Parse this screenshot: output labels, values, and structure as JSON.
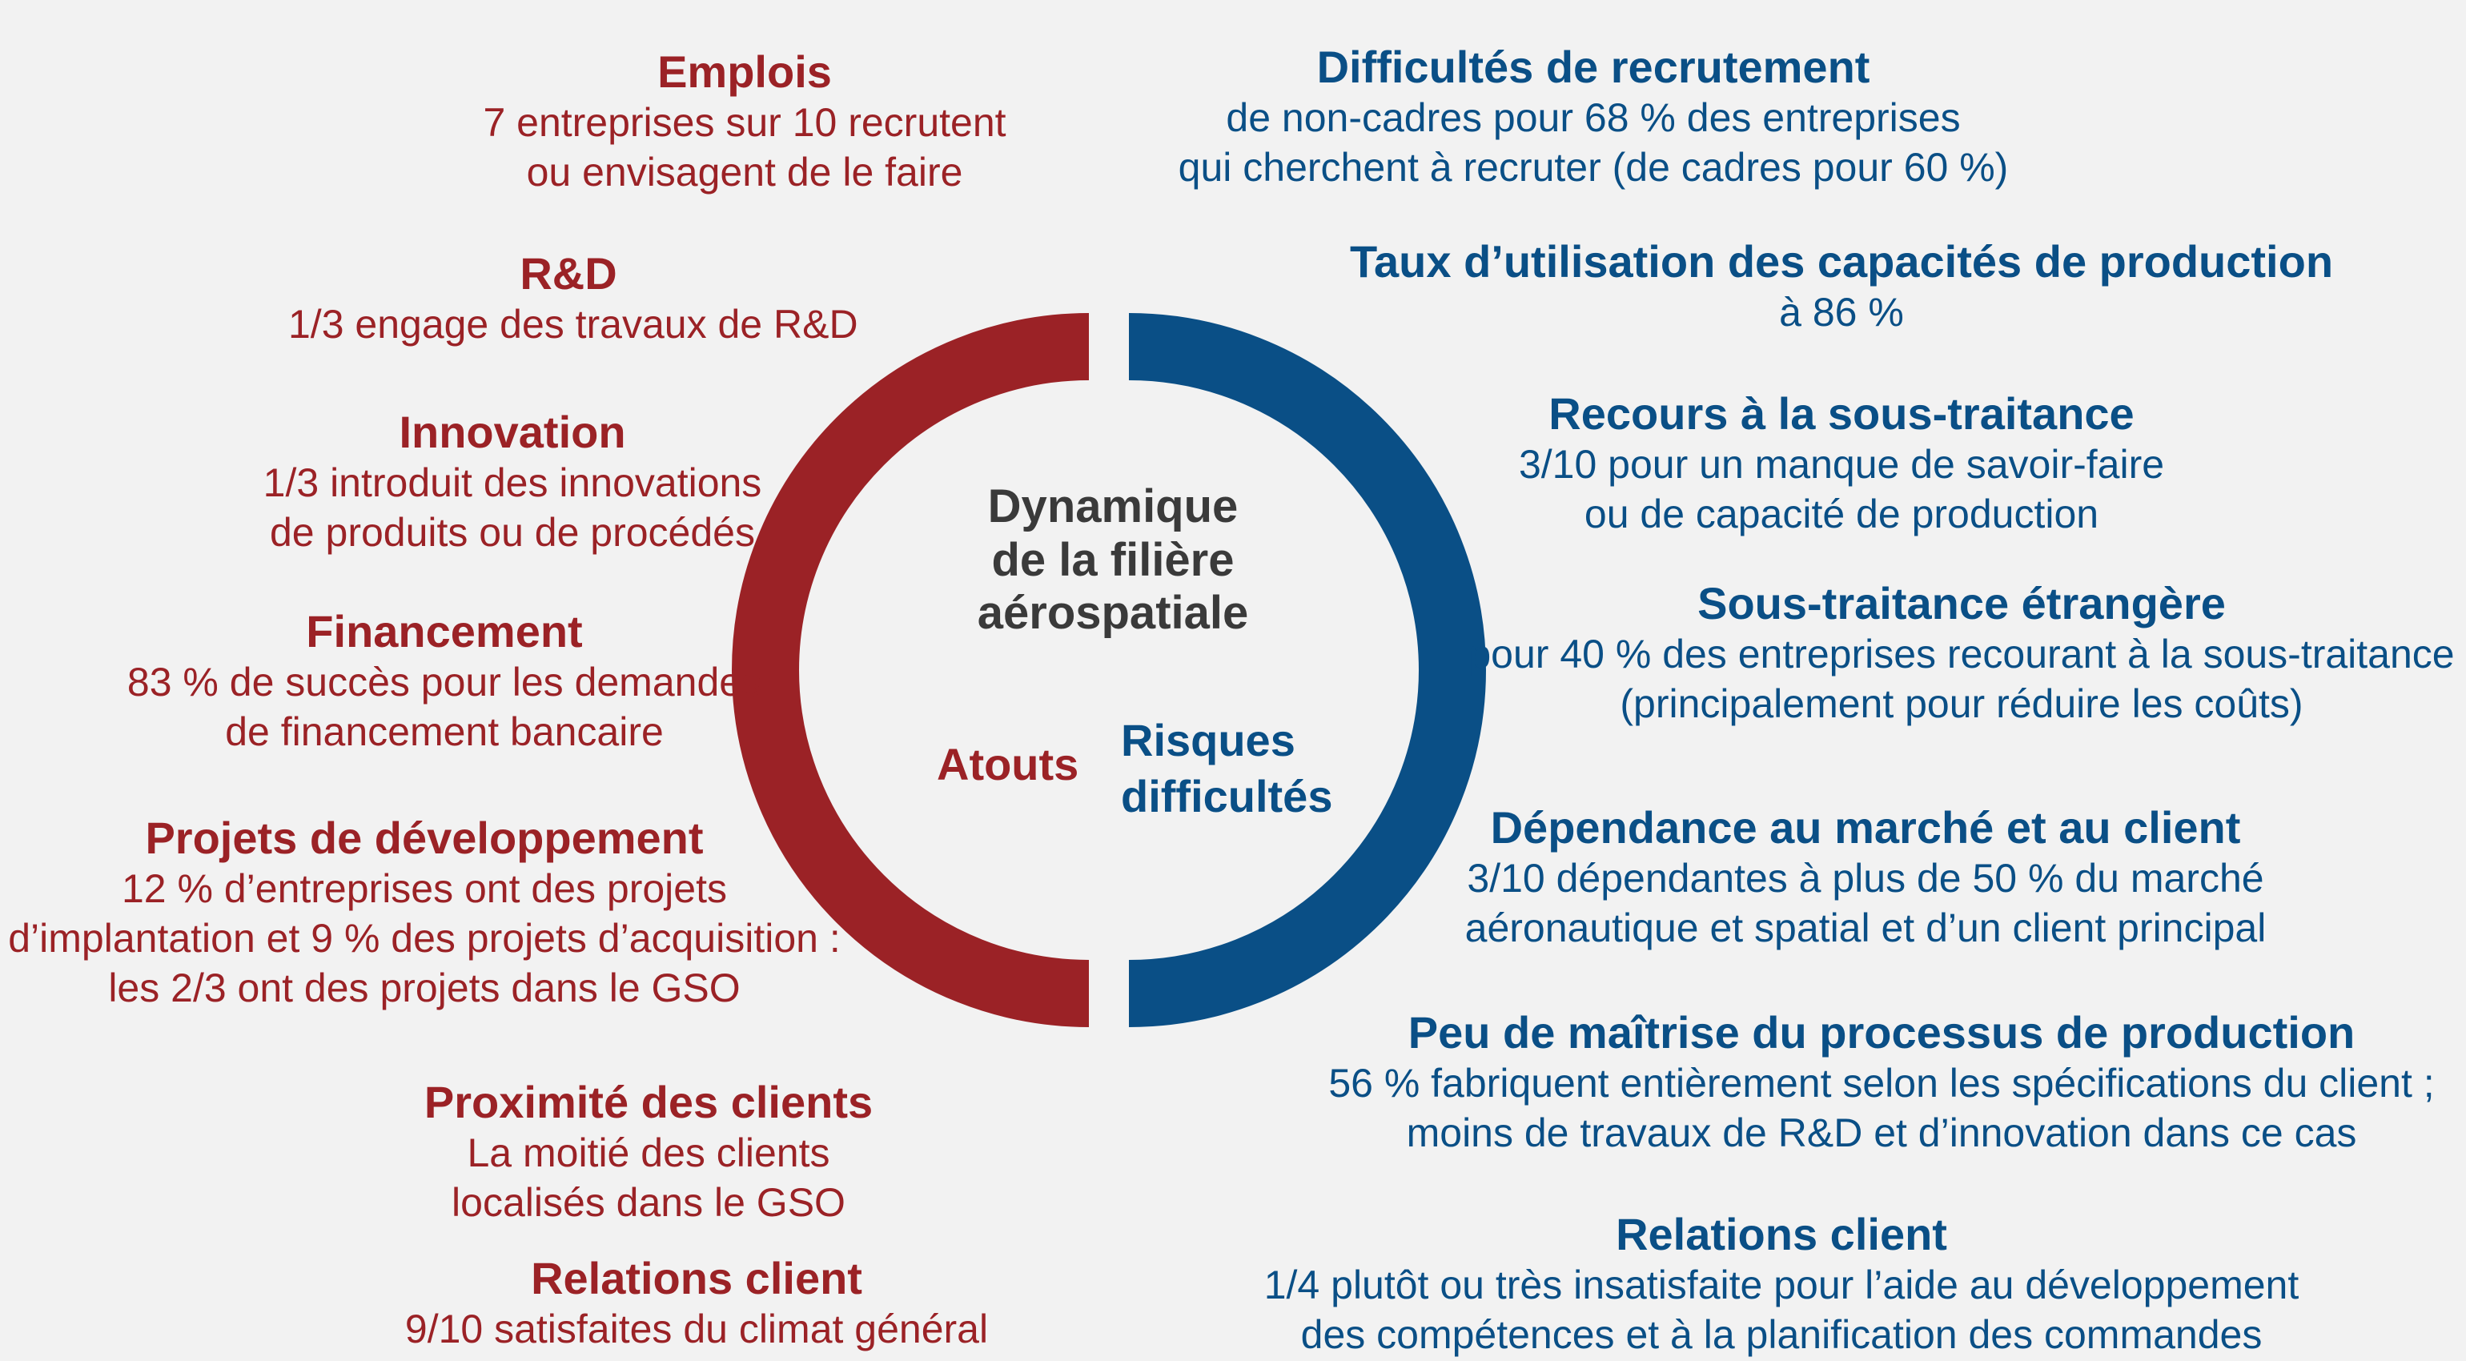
{
  "center": {
    "line1": "Dynamique",
    "line2": "de la filière",
    "line3": "aérospatiale"
  },
  "ring": {
    "left_label": "Atouts",
    "right_label_1": "Risques",
    "right_label_2": "difficultés",
    "left_color": "#9b2226",
    "right_color": "#0a4f86"
  },
  "atouts": [
    {
      "title": "Emplois",
      "lines": [
        "7 entreprises sur 10 recrutent",
        "ou envisagent de le faire"
      ]
    },
    {
      "title": "R&D",
      "lines": [
        "1/3 engage des travaux de R&D"
      ]
    },
    {
      "title": "Innovation",
      "lines": [
        "1/3 introduit des innovations",
        "de produits ou de procédés"
      ]
    },
    {
      "title": "Financement",
      "lines": [
        "83 % de succès pour les demandes",
        "de financement bancaire"
      ]
    },
    {
      "title": "Projets de développement",
      "lines": [
        "12 % d’entreprises ont des projets",
        "d’implantation et 9 % des projets d’acquisition :",
        "les 2/3 ont des projets dans le GSO"
      ]
    },
    {
      "title": "Proximité des clients",
      "lines": [
        "La moitié des clients",
        "localisés dans le GSO"
      ]
    },
    {
      "title": "Relations client",
      "lines": [
        "9/10 satisfaites du climat général"
      ]
    }
  ],
  "risques": [
    {
      "title": "Difficultés de recrutement",
      "lines": [
        "de non-cadres pour 68 % des entreprises",
        "qui cherchent à recruter (de cadres pour 60 %)"
      ]
    },
    {
      "title": "Taux d’utilisation des capacités de production",
      "lines": [
        "à 86 %"
      ]
    },
    {
      "title": "Recours à la sous-traitance",
      "lines": [
        "3/10 pour un manque de savoir-faire",
        "ou de capacité de production"
      ]
    },
    {
      "title": "Sous-traitance étrangère",
      "lines": [
        "pour 40 % des entreprises recourant à la sous-traitance",
        "(principalement pour réduire les coûts)"
      ]
    },
    {
      "title": "Dépendance au marché et au client",
      "lines": [
        "3/10 dépendantes à plus de 50 % du marché",
        "aéronautique et spatial et d’un client principal"
      ]
    },
    {
      "title": "Peu de maîtrise du processus de production",
      "lines": [
        "56 % fabriquent entièrement selon les spécifications du client ;",
        "moins de travaux de R&D et d’innovation dans ce cas"
      ]
    },
    {
      "title": "Relations client",
      "lines": [
        "1/4 plutôt ou très insatisfaite pour l’aide au développement",
        "des compétences et à la planification des commandes"
      ]
    }
  ]
}
